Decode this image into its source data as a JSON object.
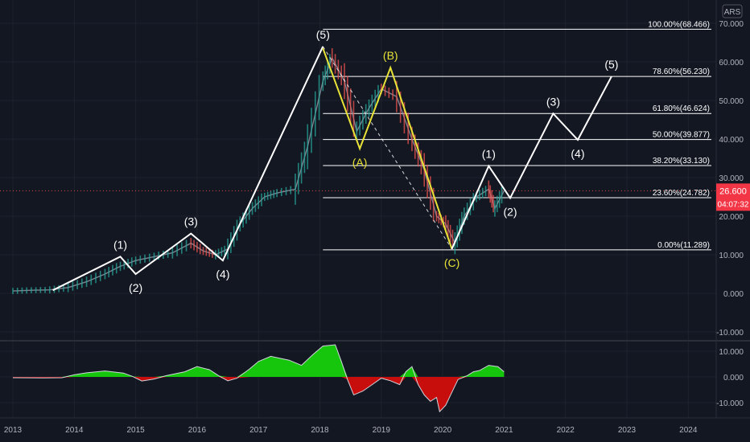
{
  "currency": "ARS",
  "price_badge": {
    "value": "26.600",
    "countdown": "04:07:32",
    "color": "#f23645"
  },
  "colors": {
    "background": "#131722",
    "grid": "#1e222d",
    "white": "#ffffff",
    "yellow": "#e8e337",
    "up": "#26a69a",
    "down": "#ef5350",
    "osc_pos": "#16c60c",
    "osc_neg": "#c80d0d"
  },
  "chart_data": [
    {
      "type": "line",
      "title": "",
      "x_ticks": [
        "2013",
        "2014",
        "2015",
        "2016",
        "2017",
        "2018",
        "2019",
        "2020",
        "2021",
        "2022",
        "2023",
        "2024"
      ],
      "y_ticks": [
        "70.000",
        "60.000",
        "50.000",
        "40.000",
        "30.000",
        "20.000",
        "10.000",
        "0.000",
        "-10.000"
      ],
      "ylim": [
        -12,
        73
      ],
      "last_price": 26.6,
      "fib_levels": [
        {
          "label": "100.00%(68.466)",
          "value": 68.466
        },
        {
          "label": "78.60%(56.230)",
          "value": 56.23
        },
        {
          "label": "61.80%(46.624)",
          "value": 46.624
        },
        {
          "label": "50.00%(39.877)",
          "value": 39.877
        },
        {
          "label": "38.20%(33.130)",
          "value": 33.13
        },
        {
          "label": "23.60%(24.782)",
          "value": 24.782
        },
        {
          "label": "0.00%(11.289)",
          "value": 11.289
        }
      ],
      "series": [
        {
          "points": [
            [
              2013.0,
              0.6
            ],
            [
              2013.3,
              0.8
            ],
            [
              2013.6,
              0.9
            ],
            [
              2013.9,
              1.5
            ],
            [
              2014.2,
              3.0
            ],
            [
              2014.5,
              5.0
            ],
            [
              2014.75,
              7.0
            ],
            [
              2015.0,
              8.5
            ],
            [
              2015.3,
              9.5
            ],
            [
              2015.6,
              10.5
            ],
            [
              2015.9,
              13.0
            ],
            [
              2016.1,
              11.0
            ],
            [
              2016.3,
              10.0
            ],
            [
              2016.5,
              11.5
            ],
            [
              2016.7,
              18.0
            ],
            [
              2016.9,
              22.0
            ],
            [
              2017.1,
              25.0
            ],
            [
              2017.3,
              26.0
            ],
            [
              2017.6,
              27.0
            ],
            [
              2017.8,
              38.0
            ],
            [
              2018.05,
              55.0
            ],
            [
              2018.2,
              61.0
            ],
            [
              2018.4,
              55.0
            ],
            [
              2018.6,
              42.0
            ],
            [
              2018.8,
              48.0
            ],
            [
              2019.0,
              53.0
            ],
            [
              2019.25,
              51.0
            ],
            [
              2019.5,
              40.0
            ],
            [
              2019.7,
              32.0
            ],
            [
              2019.9,
              20.0
            ],
            [
              2020.05,
              18.0
            ],
            [
              2020.2,
              13.0
            ],
            [
              2020.35,
              20.0
            ],
            [
              2020.55,
              25.0
            ],
            [
              2020.75,
              27.0
            ],
            [
              2020.85,
              22.0
            ],
            [
              2021.0,
              26.6
            ]
          ]
        }
      ],
      "elliott_white": [
        {
          "x": 2013.65,
          "y": 0.8
        },
        {
          "x": 2014.75,
          "y": 9.5,
          "label": "(1)"
        },
        {
          "x": 2015.0,
          "y": 5.0,
          "label": "(2)"
        },
        {
          "x": 2015.9,
          "y": 15.5,
          "label": "(3)"
        },
        {
          "x": 2016.42,
          "y": 8.5,
          "label": "(4)"
        },
        {
          "x": 2018.05,
          "y": 64.0,
          "label": "(5)"
        }
      ],
      "elliott_yellow": [
        {
          "x": 2018.05,
          "y": 63.5
        },
        {
          "x": 2018.65,
          "y": 37.5,
          "label": "(A)"
        },
        {
          "x": 2019.15,
          "y": 58.5,
          "label": "(B)"
        },
        {
          "x": 2020.15,
          "y": 11.5,
          "label": "(C)"
        }
      ],
      "projection": [
        {
          "x": 2020.15,
          "y": 11.5
        },
        {
          "x": 2020.75,
          "y": 33.0,
          "label": "(1)"
        },
        {
          "x": 2021.1,
          "y": 24.7,
          "label": "(2)"
        },
        {
          "x": 2021.8,
          "y": 46.6,
          "label": "(3)"
        },
        {
          "x": 2022.2,
          "y": 39.8,
          "label": "(4)"
        },
        {
          "x": 2022.75,
          "y": 56.2,
          "label": "(5)"
        }
      ]
    },
    {
      "type": "area",
      "title": "",
      "y_ticks": [
        "10.000",
        "0.000",
        "-10.000"
      ],
      "ylim": [
        -14,
        14
      ],
      "x": [
        2013.0,
        2013.5,
        2013.8,
        2014.0,
        2014.2,
        2014.5,
        2014.8,
        2014.95,
        2015.1,
        2015.3,
        2015.5,
        2015.8,
        2016.0,
        2016.2,
        2016.35,
        2016.5,
        2016.65,
        2016.85,
        2017.0,
        2017.2,
        2017.5,
        2017.7,
        2017.9,
        2018.05,
        2018.25,
        2018.35,
        2018.45,
        2018.55,
        2018.7,
        2018.85,
        2019.0,
        2019.15,
        2019.3,
        2019.4,
        2019.5,
        2019.6,
        2019.7,
        2019.8,
        2019.9,
        2019.95,
        2020.05,
        2020.15,
        2020.25,
        2020.4,
        2020.5,
        2020.6,
        2020.75,
        2020.9,
        2021.0
      ],
      "values": [
        -0.3,
        -0.4,
        -0.3,
        0.8,
        1.6,
        2.3,
        1.5,
        0.2,
        -1.6,
        -0.8,
        0.5,
        2.0,
        4.0,
        2.8,
        0.5,
        -1.5,
        -0.5,
        3.0,
        6.0,
        8.0,
        6.5,
        4.5,
        9.0,
        12.0,
        12.5,
        6.0,
        -1.0,
        -7.0,
        -5.5,
        -3.0,
        -0.5,
        -1.5,
        -3.0,
        2.0,
        4.0,
        -3.0,
        -7.0,
        -9.5,
        -8.0,
        -13.5,
        -11.0,
        -6.0,
        -1.0,
        0.5,
        2.0,
        2.5,
        4.5,
        4.0,
        2.0
      ]
    }
  ]
}
